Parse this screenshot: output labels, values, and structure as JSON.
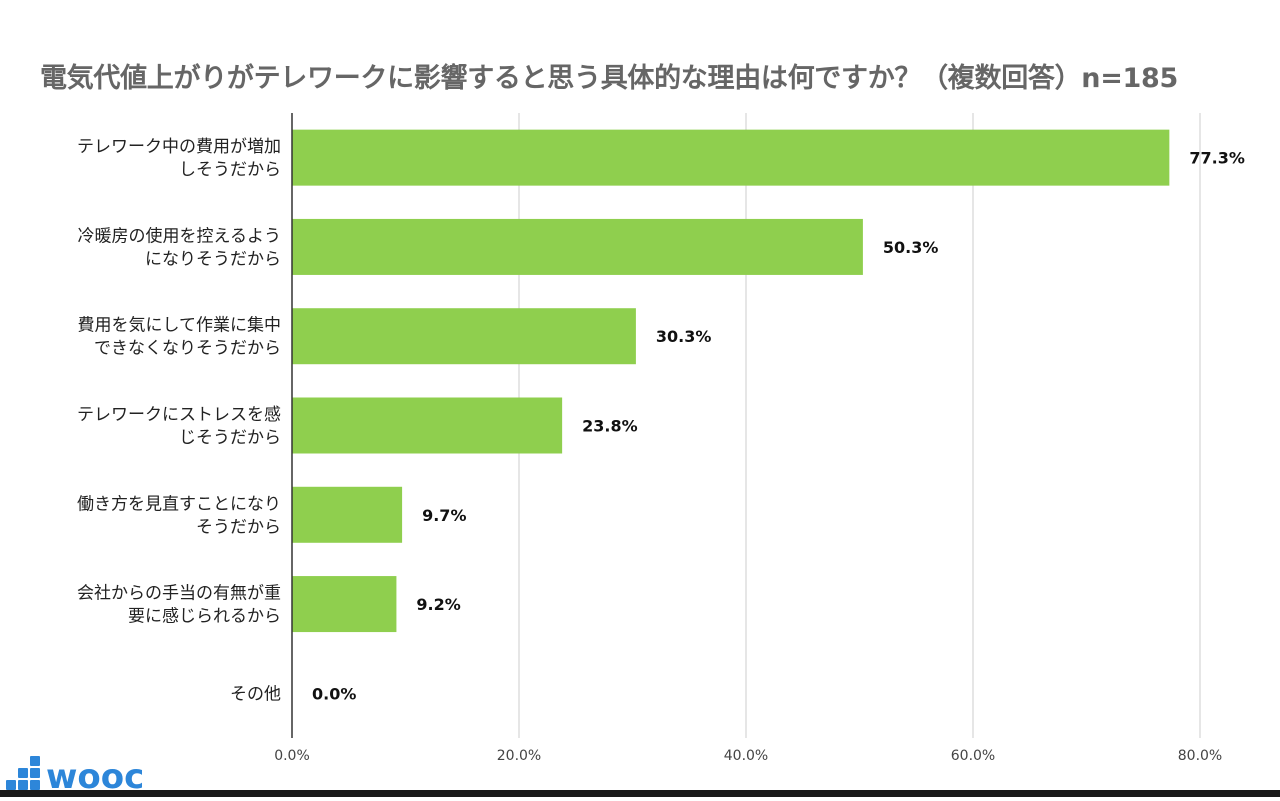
{
  "chart_data": {
    "type": "bar",
    "orientation": "horizontal",
    "title": "電気代値上がりがテレワークに影響すると思う具体的な理由は何ですか？（複数回答）n=185",
    "categories": [
      [
        "テレワーク中の費用が増加",
        "しそうだから"
      ],
      [
        "冷暖房の使用を控えるよう",
        "になりそうだから"
      ],
      [
        "費用を気にして作業に集中",
        "できなくなりそうだから"
      ],
      [
        "テレワークにストレスを感",
        "じそうだから"
      ],
      [
        "働き方を見直すことになり",
        "そうだから"
      ],
      [
        "会社からの手当の有無が重",
        "要に感じられるから"
      ],
      [
        "その他"
      ]
    ],
    "values": [
      77.3,
      50.3,
      30.3,
      23.8,
      9.7,
      9.2,
      0.0
    ],
    "value_labels": [
      "77.3%",
      "50.3%",
      "30.3%",
      "23.8%",
      "9.7%",
      "9.2%",
      "0.0%"
    ],
    "x_ticks": [
      0,
      20,
      40,
      60,
      80
    ],
    "x_tick_labels": [
      "0.0%",
      "20.0%",
      "40.0%",
      "60.0%",
      "80.0%"
    ],
    "xlim": [
      0,
      80
    ],
    "grid": true,
    "bar_color": "#8fcf4e"
  },
  "logo": {
    "text": "wooc",
    "color": "#2d86d9"
  }
}
